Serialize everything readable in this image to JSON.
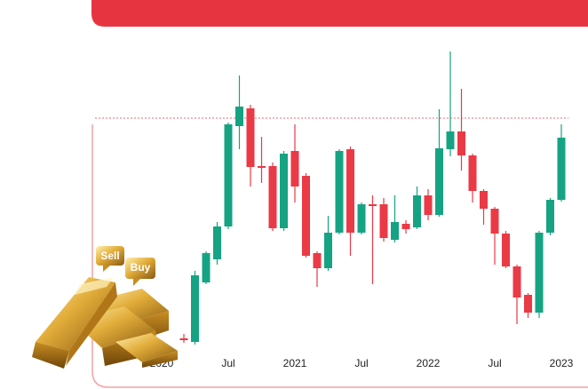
{
  "chart_data": {
    "type": "candlestick",
    "x": [
      2,
      3,
      4,
      5,
      6,
      7,
      8,
      9,
      10,
      11,
      12,
      13,
      14,
      15,
      16,
      17,
      18,
      19,
      20,
      21,
      22,
      23,
      24,
      25,
      26,
      27,
      28,
      29,
      30,
      31,
      32,
      33,
      34,
      35,
      36
    ],
    "open": [
      57,
      53,
      120,
      146,
      183,
      296,
      316,
      251,
      251,
      181,
      268,
      240,
      153,
      136,
      176,
      270,
      176,
      208,
      208,
      168,
      186,
      182,
      218,
      196,
      270,
      290,
      263,
      223,
      203,
      175,
      138,
      106,
      86,
      176,
      213
    ],
    "high": [
      62,
      133,
      155,
      188,
      300,
      353,
      320,
      284,
      255,
      268,
      298,
      243,
      155,
      195,
      270,
      273,
      210,
      218,
      215,
      218,
      190,
      228,
      225,
      315,
      380,
      338,
      265,
      225,
      205,
      178,
      140,
      108,
      178,
      215,
      298
    ],
    "low": [
      52,
      50,
      118,
      140,
      180,
      270,
      228,
      232,
      178,
      178,
      210,
      148,
      115,
      133,
      174,
      150,
      174,
      118,
      166,
      165,
      175,
      180,
      190,
      194,
      262,
      246,
      210,
      185,
      140,
      136,
      73,
      80,
      80,
      173,
      211
    ],
    "close": [
      56,
      128,
      153,
      183,
      298,
      318,
      250,
      250,
      181,
      265,
      228,
      150,
      136,
      176,
      268,
      176,
      208,
      207,
      170,
      188,
      180,
      218,
      196,
      271,
      290,
      263,
      223,
      203,
      175,
      138,
      103,
      86,
      176,
      213,
      283
    ],
    "up_color": "#16a383",
    "down_color": "#ea3a46",
    "xlim": [
      -6,
      38
    ],
    "xticks": [
      {
        "value": 0,
        "label": "2020"
      },
      {
        "value": 6,
        "label": "Jul"
      },
      {
        "value": 12,
        "label": "2021"
      },
      {
        "value": 18,
        "label": "Jul"
      },
      {
        "value": 24,
        "label": "2022"
      },
      {
        "value": 30,
        "label": "Jul"
      },
      {
        "value": 36,
        "label": "2023"
      }
    ],
    "ylim": [
      0,
      438
    ],
    "reference_line": 305,
    "annotations": [
      "Sell",
      "Buy"
    ]
  }
}
